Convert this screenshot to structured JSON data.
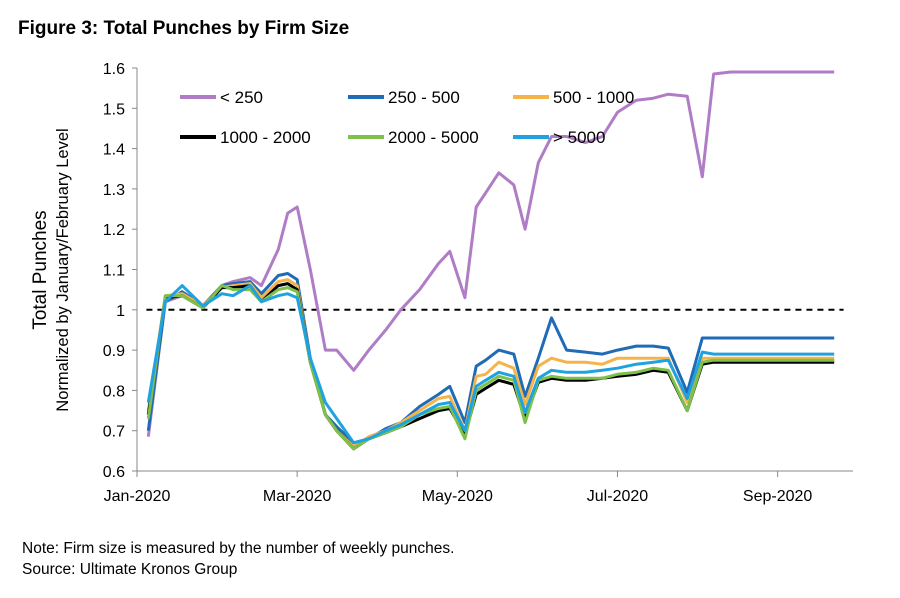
{
  "figure_title": "Figure 3: Total Punches by Firm Size",
  "note": "Note: Firm size is measured by the number of weekly punches.",
  "source": "Source: Ultimate Kronos Group",
  "chart_data": {
    "type": "line",
    "title": "Figure 3: Total Punches by Firm Size",
    "ylabel": "Total Punches",
    "ylabel_sub": "Normalized by January/February Level",
    "xlabel": "",
    "ylim": [
      0.6,
      1.6
    ],
    "y_ticks": [
      0.6,
      0.7,
      0.8,
      0.9,
      1,
      1.1,
      1.2,
      1.3,
      1.4,
      1.5,
      1.6
    ],
    "y_tick_labels": [
      "0.6",
      "0.7",
      "0.8",
      "0.9",
      "1",
      "1.1",
      "1.2",
      "1.3",
      "1.4",
      "1.5",
      "1.6"
    ],
    "x_ticks": [
      0,
      8.5,
      17,
      25.5,
      34
    ],
    "x_tick_labels": [
      "Jan-2020",
      "Mar-2020",
      "May-2020",
      "Jul-2020",
      "Sep-2020"
    ],
    "xlim": [
      0,
      38
    ],
    "reference_line": {
      "y": 1,
      "style": "dashed"
    },
    "legend_position": "top-left",
    "x": [
      0.6,
      1.5,
      2.4,
      3.5,
      4.5,
      5.1,
      6,
      6.6,
      7.5,
      8,
      8.5,
      9.2,
      10,
      10.6,
      11.5,
      12.3,
      13.2,
      14,
      15,
      16,
      16.6,
      17.4,
      18,
      18.5,
      19.2,
      20,
      20.6,
      21.3,
      22,
      22.8,
      23.8,
      24.7,
      25.5,
      26.5,
      27.4,
      28.2,
      29.2,
      30,
      30.6,
      31.5,
      32,
      33,
      34,
      34.8,
      35.4,
      36.2,
      37
    ],
    "series": [
      {
        "name": "< 250",
        "color": "#B07CC6",
        "values": [
          0.685,
          1.02,
          1.035,
          1.01,
          1.06,
          1.07,
          1.08,
          1.06,
          1.15,
          1.24,
          1.255,
          1.1,
          0.9,
          0.9,
          0.85,
          0.9,
          0.95,
          1.0,
          1.05,
          1.115,
          1.145,
          1.03,
          1.255,
          1.29,
          1.34,
          1.31,
          1.2,
          1.365,
          1.43,
          1.43,
          1.415,
          1.43,
          1.49,
          1.52,
          1.525,
          1.535,
          1.53,
          1.33,
          1.585,
          1.59,
          1.59,
          1.59,
          1.59,
          1.59,
          1.59,
          1.59,
          1.59
        ]
      },
      {
        "name": "250 - 500",
        "color": "#1F6BB5",
        "values": [
          0.7,
          1.02,
          1.045,
          1.01,
          1.06,
          1.065,
          1.07,
          1.04,
          1.085,
          1.09,
          1.075,
          0.88,
          0.74,
          0.71,
          0.67,
          0.68,
          0.705,
          0.72,
          0.76,
          0.79,
          0.81,
          0.72,
          0.86,
          0.875,
          0.9,
          0.89,
          0.785,
          0.88,
          0.98,
          0.9,
          0.895,
          0.89,
          0.9,
          0.91,
          0.91,
          0.905,
          0.795,
          0.93,
          0.93,
          0.93,
          0.93,
          0.93,
          0.93,
          0.93,
          0.93,
          0.93,
          0.93
        ]
      },
      {
        "name": "500 - 1000",
        "color": "#F5B44A",
        "values": [
          0.75,
          1.035,
          1.04,
          1.01,
          1.055,
          1.06,
          1.065,
          1.03,
          1.07,
          1.075,
          1.06,
          0.87,
          0.74,
          0.7,
          0.66,
          0.685,
          0.7,
          0.72,
          0.75,
          0.78,
          0.785,
          0.7,
          0.835,
          0.84,
          0.87,
          0.855,
          0.765,
          0.86,
          0.88,
          0.87,
          0.87,
          0.865,
          0.88,
          0.88,
          0.88,
          0.88,
          0.77,
          0.88,
          0.88,
          0.88,
          0.88,
          0.88,
          0.88,
          0.88,
          0.88,
          0.88,
          0.88
        ]
      },
      {
        "name": "1000 - 2000",
        "color": "#000000",
        "values": [
          0.74,
          1.03,
          1.035,
          1.005,
          1.055,
          1.055,
          1.06,
          1.02,
          1.06,
          1.065,
          1.05,
          0.87,
          0.74,
          0.7,
          0.655,
          0.68,
          0.695,
          0.71,
          0.73,
          0.75,
          0.755,
          0.69,
          0.79,
          0.805,
          0.825,
          0.815,
          0.73,
          0.82,
          0.83,
          0.825,
          0.825,
          0.83,
          0.835,
          0.84,
          0.85,
          0.845,
          0.75,
          0.865,
          0.87,
          0.87,
          0.87,
          0.87,
          0.87,
          0.87,
          0.87,
          0.87,
          0.87
        ]
      },
      {
        "name": "2000 - 5000",
        "color": "#7DC14A",
        "values": [
          0.73,
          1.035,
          1.035,
          1.005,
          1.06,
          1.05,
          1.05,
          1.02,
          1.05,
          1.055,
          1.045,
          0.87,
          0.74,
          0.7,
          0.655,
          0.68,
          0.695,
          0.71,
          0.74,
          0.755,
          0.76,
          0.68,
          0.8,
          0.815,
          0.835,
          0.825,
          0.72,
          0.825,
          0.835,
          0.83,
          0.83,
          0.83,
          0.84,
          0.845,
          0.855,
          0.85,
          0.75,
          0.87,
          0.875,
          0.875,
          0.875,
          0.875,
          0.875,
          0.875,
          0.875,
          0.875,
          0.875
        ]
      },
      {
        "name": "> 5000",
        "color": "#1FA3E0",
        "values": [
          0.77,
          1.02,
          1.06,
          1.01,
          1.04,
          1.035,
          1.06,
          1.02,
          1.035,
          1.04,
          1.03,
          0.88,
          0.77,
          0.73,
          0.67,
          0.68,
          0.7,
          0.715,
          0.74,
          0.765,
          0.77,
          0.7,
          0.81,
          0.825,
          0.845,
          0.835,
          0.745,
          0.83,
          0.85,
          0.845,
          0.845,
          0.85,
          0.855,
          0.865,
          0.87,
          0.875,
          0.78,
          0.895,
          0.89,
          0.89,
          0.89,
          0.89,
          0.89,
          0.89,
          0.89,
          0.89,
          0.89
        ]
      }
    ]
  }
}
